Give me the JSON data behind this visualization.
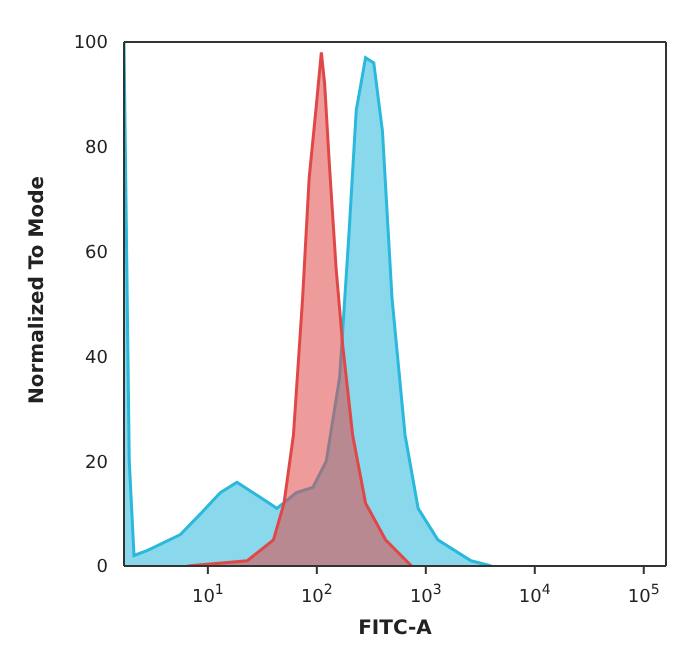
{
  "chart_data": {
    "type": "area",
    "xlabel": "FITC-A",
    "ylabel": "Normalized To Mode",
    "log": "x",
    "xlim": [
      1.7,
      160000
    ],
    "ylim": [
      0,
      100
    ],
    "yticks": [
      0,
      20,
      40,
      60,
      80,
      100
    ],
    "xticks": [
      {
        "value": 10,
        "label": "10$^{1}$"
      },
      {
        "value": 100,
        "label": "10$^{2}$"
      },
      {
        "value": 1000,
        "label": "10$^{3}$"
      },
      {
        "value": 10000,
        "label": "10$^{4}$"
      },
      {
        "value": 100000,
        "label": "10$^{5}$"
      }
    ],
    "series": [
      {
        "color": "#2ab8dc",
        "x": [
          1.7,
          1.9,
          2.1,
          2.8,
          5.6,
          8.6,
          13,
          18.5,
          26,
          43,
          65,
          92,
          122,
          162,
          198,
          230,
          280,
          333,
          400,
          490,
          645,
          850,
          1290,
          2600,
          4000
        ],
        "values": [
          100,
          20,
          2,
          3,
          6,
          10,
          14,
          16,
          14,
          11,
          14,
          15,
          20,
          36,
          64,
          87,
          97,
          96,
          83,
          51,
          25,
          11,
          5,
          1,
          0
        ]
      },
      {
        "color": "#e04848",
        "x": [
          6.5,
          23,
          40,
          50,
          61,
          74,
          85,
          98,
          110,
          118,
          130,
          150,
          173,
          213,
          280,
          427,
          740
        ],
        "values": [
          0,
          1,
          5,
          12,
          25,
          51,
          74,
          87,
          98,
          92,
          77,
          57,
          42,
          25,
          12,
          5,
          0
        ]
      }
    ]
  }
}
